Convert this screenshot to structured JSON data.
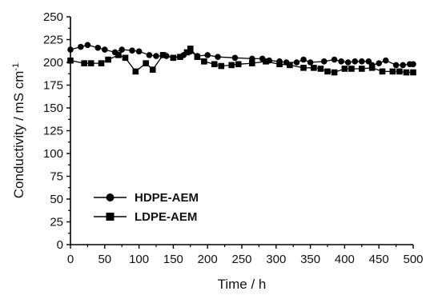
{
  "chart_data": {
    "type": "line",
    "title": "",
    "xlabel": "Time / h",
    "ylabel": "Conductivity / mS cm",
    "ylabel_superscript": "-1",
    "xlim": [
      0,
      500
    ],
    "ylim": [
      0,
      250
    ],
    "xticks": [
      0,
      50,
      100,
      150,
      200,
      250,
      300,
      350,
      400,
      450,
      500
    ],
    "yticks": [
      0,
      25,
      50,
      75,
      100,
      125,
      150,
      175,
      200,
      225,
      250
    ],
    "grid": false,
    "legend": "lower-left",
    "series": [
      {
        "name": "HDPE-AEM",
        "marker": "circle",
        "color": "#000000",
        "x": [
          0,
          15,
          25,
          40,
          50,
          65,
          75,
          90,
          100,
          115,
          125,
          140,
          150,
          165,
          175,
          185,
          200,
          215,
          240,
          265,
          280,
          290,
          305,
          315,
          330,
          340,
          350,
          370,
          385,
          395,
          405,
          415,
          425,
          435,
          440,
          450,
          460,
          475,
          485,
          495,
          500
        ],
        "y": [
          214,
          217,
          219,
          216,
          214,
          211,
          214,
          213,
          212,
          208,
          207,
          207,
          205,
          208,
          212,
          207,
          208,
          206,
          205,
          204,
          204,
          202,
          201,
          200,
          200,
          203,
          200,
          201,
          203,
          201,
          200,
          201,
          201,
          201,
          197,
          199,
          202,
          197,
          197,
          198,
          198
        ]
      },
      {
        "name": "LDPE-AEM",
        "marker": "square",
        "color": "#000000",
        "x": [
          0,
          20,
          30,
          45,
          55,
          70,
          80,
          95,
          110,
          120,
          135,
          150,
          160,
          170,
          175,
          185,
          195,
          210,
          220,
          235,
          245,
          265,
          285,
          305,
          320,
          340,
          355,
          365,
          375,
          385,
          400,
          410,
          425,
          440,
          455,
          470,
          480,
          490,
          500
        ],
        "y": [
          202,
          199,
          199,
          199,
          203,
          208,
          205,
          190,
          199,
          192,
          208,
          205,
          206,
          211,
          215,
          206,
          201,
          198,
          196,
          197,
          198,
          199,
          201,
          198,
          197,
          194,
          194,
          193,
          190,
          189,
          193,
          193,
          193,
          194,
          190,
          190,
          190,
          189,
          189
        ]
      }
    ]
  }
}
